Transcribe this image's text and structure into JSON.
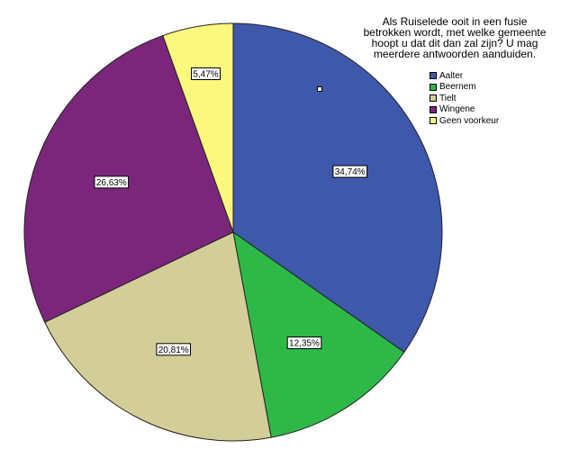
{
  "chart_data": {
    "type": "pie",
    "title_lines": [
      "Als Ruiselede ooit in een fusie",
      "betrokken wordt, met welke gemeente",
      "hoopt u dat dit dan zal zijn? U mag",
      "meerdere antwoorden aanduiden."
    ],
    "legend_position": "top-right",
    "slices": [
      {
        "name": "Aalter",
        "value": 34.74,
        "label": "34,74%",
        "color": "#3e58ac"
      },
      {
        "name": "Beernem",
        "value": 12.35,
        "label": "12,35%",
        "color": "#2eb848"
      },
      {
        "name": "Tielt",
        "value": 20.81,
        "label": "20,81%",
        "color": "#d3ce97"
      },
      {
        "name": "Wingene",
        "value": 26.63,
        "label": "26,63%",
        "color": "#7b267b"
      },
      {
        "name": "Geen voorkeur",
        "value": 5.47,
        "label": "5,47%",
        "color": "#fbf87d"
      }
    ]
  }
}
